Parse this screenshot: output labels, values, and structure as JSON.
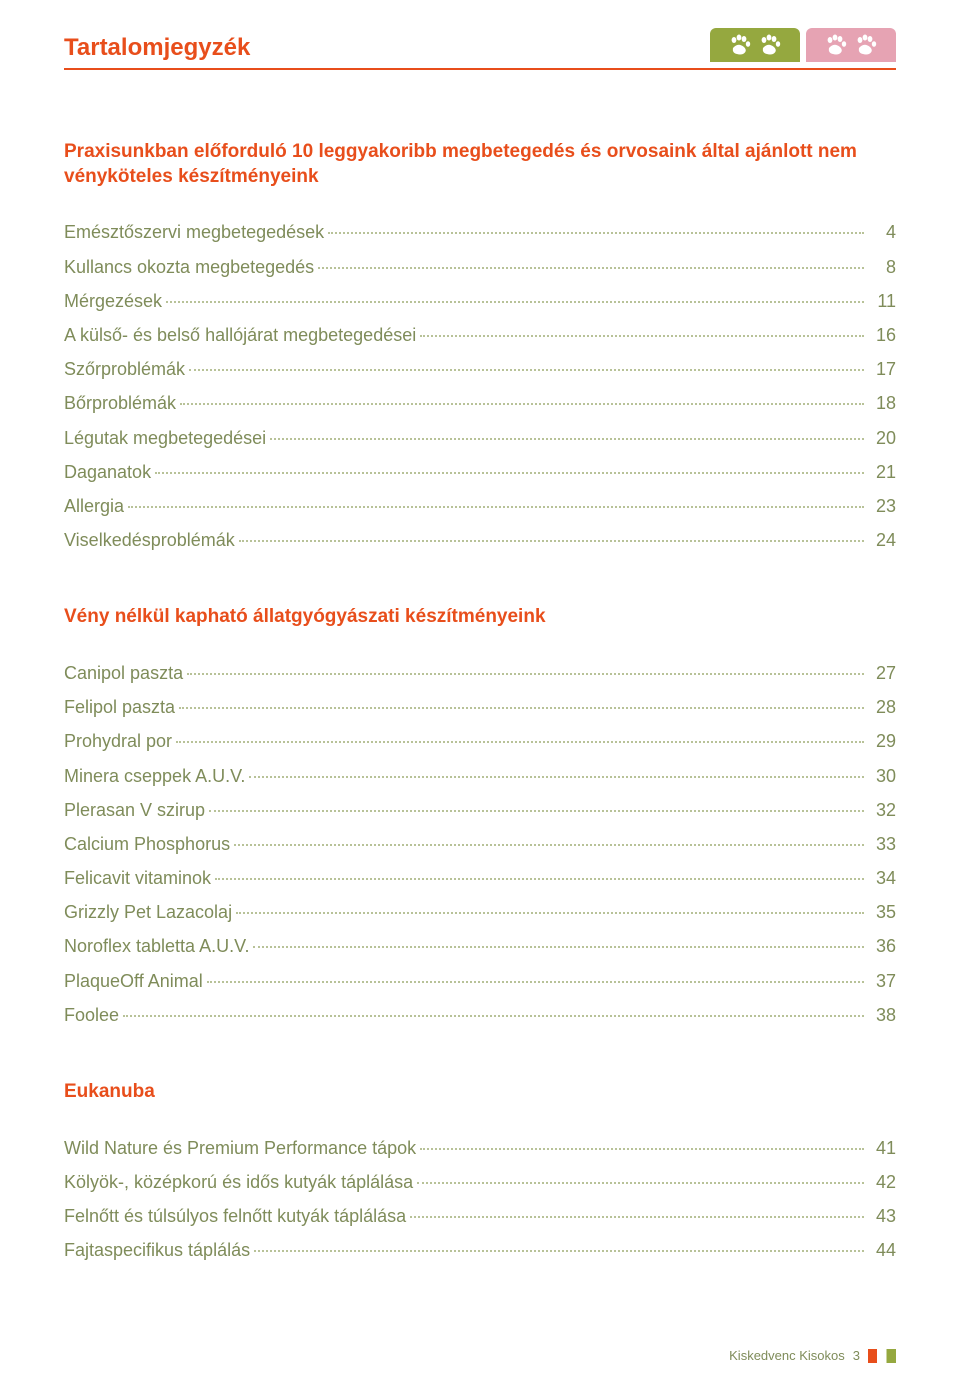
{
  "page": {
    "title": "Tartalomjegyzék",
    "colors": {
      "accent": "#e84e1b",
      "body_text": "#7f8c5a",
      "leader": "#b8c298",
      "tab_olive": "#95a83f",
      "tab_pink": "#e6a3b3",
      "background": "#ffffff"
    },
    "typography": {
      "title_fontsize": 24,
      "heading_fontsize": 19,
      "item_fontsize": 18,
      "footer_fontsize": 13
    }
  },
  "sections": [
    {
      "heading": "Praxisunkban előforduló 10 leggyakoribb megbetegedés  és orvosaink által ajánlott nem vényköteles készítményeink",
      "items": [
        {
          "label": "Emésztőszervi megbetegedések",
          "page": "4"
        },
        {
          "label": "Kullancs okozta megbetegedés",
          "page": "8"
        },
        {
          "label": "Mérgezések",
          "page": "11"
        },
        {
          "label": "A külső- és belső hallójárat megbetegedései",
          "page": "16"
        },
        {
          "label": "Szőrproblémák",
          "page": "17"
        },
        {
          "label": "Bőrproblémák",
          "page": "18"
        },
        {
          "label": "Légutak megbetegedései",
          "page": "20"
        },
        {
          "label": "Daganatok",
          "page": "21"
        },
        {
          "label": "Allergia",
          "page": "23"
        },
        {
          "label": "Viselkedésproblémák",
          "page": "24"
        }
      ]
    },
    {
      "heading": "Vény nélkül kapható állatgyógyászati készítményeink",
      "items": [
        {
          "label": "Canipol paszta",
          "page": "27"
        },
        {
          "label": "Felipol paszta",
          "page": "28"
        },
        {
          "label": "Prohydral por",
          "page": "29"
        },
        {
          "label": "Minera cseppek A.U.V.",
          "page": "30"
        },
        {
          "label": "Plerasan V szirup",
          "page": "32"
        },
        {
          "label": "Calcium Phosphorus",
          "page": "33"
        },
        {
          "label": "Felicavit vitaminok",
          "page": "34"
        },
        {
          "label": "Grizzly Pet Lazacolaj",
          "page": "35"
        },
        {
          "label": "Noroflex tabletta A.U.V.",
          "page": "36"
        },
        {
          "label": "PlaqueOff Animal",
          "page": "37"
        },
        {
          "label": "Foolee",
          "page": "38"
        }
      ]
    },
    {
      "heading": "Eukanuba",
      "items": [
        {
          "label": "Wild Nature és Premium Performance tápok",
          "page": "41"
        },
        {
          "label": "Kölyök-, középkorú és idős kutyák táplálása",
          "page": "42"
        },
        {
          "label": "Felnőtt és túlsúlyos felnőtt kutyák táplálása",
          "page": "43"
        },
        {
          "label": "Fajtaspecifikus táplálás",
          "page": "44"
        }
      ]
    }
  ],
  "footer": {
    "text": "Kiskedvenc Kisokos",
    "page_number": "3"
  }
}
